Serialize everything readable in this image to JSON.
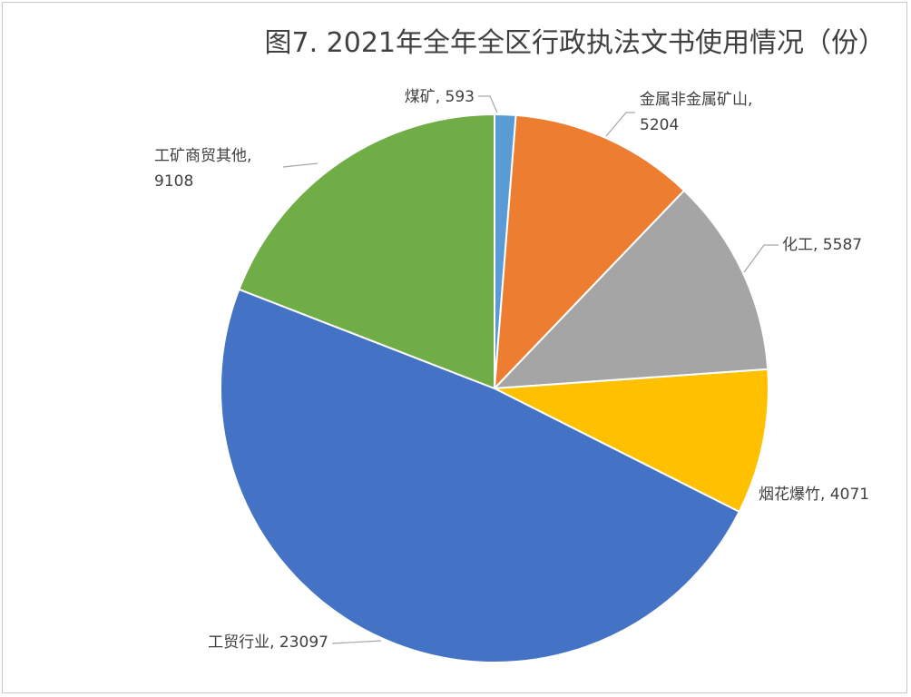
{
  "chart_data": {
    "type": "pie",
    "title": "图7. 2021年全年全区行政执法文书使用情况（份）",
    "categories": [
      "煤矿",
      "金属非金属矿山",
      "化工",
      "烟花爆竹",
      "工贸行业",
      "工矿商贸其他"
    ],
    "values": [
      593,
      5204,
      5587,
      4071,
      23097,
      9108
    ],
    "value_labels": [
      "煤矿, 593",
      "金属非金属矿山,\n5204",
      "化工, 5587",
      "烟花爆竹, 4071",
      "工贸行业, 23097",
      "工矿商贸其他,\n9108"
    ],
    "colors": [
      "#5b9bd5",
      "#ed7d31",
      "#a5a5a5",
      "#ffc000",
      "#4472c4",
      "#70ad47"
    ]
  }
}
